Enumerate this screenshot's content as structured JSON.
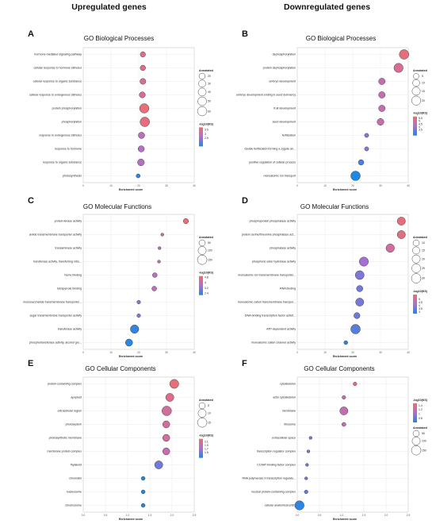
{
  "headers": {
    "left": "Upregulated genes",
    "right": "Downregulated genes"
  },
  "chart_data": [
    {
      "id": "A",
      "letter": "A",
      "type": "scatter",
      "title": "GO Biological Processes",
      "xlabel": "Enrichment score",
      "xlim": [
        0,
        40
      ],
      "xticks": [
        0,
        10,
        20,
        30,
        40
      ],
      "categories": [
        "hormone-mediated signaling pathway",
        "cellular response to hormone stimulus",
        "cellular response to organic substance",
        "cellular response to endogenous stimulus",
        "protein phosphorylation",
        "phosphorylation",
        "response to endogenous stimulus",
        "response to hormone",
        "response to organic substance",
        "photosynthesis"
      ],
      "x": [
        21.5,
        21.5,
        21.5,
        21.3,
        22.0,
        22.2,
        21.0,
        20.9,
        20.8,
        19.8
      ],
      "size": [
        12,
        13,
        17,
        18,
        60,
        62,
        21,
        20,
        26,
        5
      ],
      "color": [
        3.5,
        3.5,
        3.4,
        3.3,
        3.7,
        3.6,
        2.9,
        2.8,
        2.8,
        1.6
      ],
      "legend_size": {
        "title": "Annotated",
        "values": [
          20,
          30,
          40,
          50,
          60
        ]
      },
      "legend_color": {
        "title": "-log10(KS)",
        "ticks": [
          3.5,
          3.0,
          2.5
        ],
        "min": 1.5,
        "max": 3.8
      },
      "legend_order": "size-first"
    },
    {
      "id": "B",
      "letter": "B",
      "type": "scatter",
      "title": "GO Biological Processes",
      "xlabel": "Enrichment score",
      "xlim": [
        0,
        40
      ],
      "xticks": [
        0,
        10,
        20,
        30,
        40
      ],
      "categories": [
        "dephosphorylation",
        "protein dephosphorylation",
        "embryo development",
        "embryo development ending in seed dormancy",
        "fruit development",
        "seed development",
        "fertilization",
        "double fertilization forming a zygote an...",
        "positive regulation of cellular process",
        "monoatomic ion transport"
      ],
      "x": [
        38.5,
        36.5,
        30.5,
        30.5,
        30.5,
        30.0,
        25.0,
        25.0,
        23.0,
        21.0
      ],
      "size": [
        22,
        20,
        8,
        8,
        8,
        9,
        2,
        2,
        5,
        22
      ],
      "color": [
        5.6,
        5.2,
        4.7,
        4.7,
        4.7,
        4.7,
        3.8,
        3.8,
        3.0,
        2.5
      ],
      "legend_size": {
        "title": "Annotated",
        "values": [
          5,
          10,
          15,
          20
        ]
      },
      "legend_color": {
        "title": "-log10(KS)",
        "ticks": [
          5.5,
          5.0,
          4.5,
          4.0,
          3.5
        ],
        "min": 2.5,
        "max": 5.8
      },
      "legend_order": "size-first"
    },
    {
      "id": "C",
      "letter": "C",
      "type": "scatter",
      "title": "GO Molecular Functions",
      "xlabel": "Enrichment score",
      "xlim": [
        0,
        40
      ],
      "xticks": [
        0,
        10,
        20,
        30,
        40
      ],
      "categories": [
        "protein kinase activity",
        "amide transmembrane transporter activity",
        "transaminase activity",
        "transferase activity, transferring nitro...",
        "heme binding",
        "tetrapyrrole binding",
        "monosaccharide transmembrane transporter...",
        "sugar transmembrane transporter activity",
        "transferase activity",
        "phosphotransferase activity, alcohol gro..."
      ],
      "x": [
        37.0,
        28.5,
        27.5,
        27.3,
        25.8,
        25.6,
        20.0,
        20.0,
        18.5,
        16.5
      ],
      "size": [
        28,
        3,
        3,
        3,
        20,
        21,
        8,
        8,
        110,
        72
      ],
      "color": [
        4.9,
        4.2,
        4.0,
        4.0,
        3.9,
        3.9,
        3.2,
        3.2,
        2.3,
        2.2
      ],
      "legend_size": {
        "title": "Annotated",
        "values": [
          50,
          100,
          150
        ]
      },
      "legend_color": {
        "title": "-log10(KS)",
        "ticks": [
          4.8,
          4.0,
          3.2,
          2.4
        ],
        "min": 2.1,
        "max": 5.0
      },
      "legend_order": "size-first"
    },
    {
      "id": "D",
      "letter": "D",
      "type": "scatter",
      "title": "GO Molecular Functions",
      "xlabel": "Enrichment score",
      "xlim": [
        0,
        40
      ],
      "xticks": [
        0,
        10,
        20,
        30,
        40
      ],
      "categories": [
        "phosphoprotein phosphatase activity",
        "protein serine/threonine phosphatase act...",
        "phosphatase activity",
        "phosphoric ester hydrolase activity",
        "monoatomic ion transmembrane transporter...",
        "RNA binding",
        "monoatomic cation transmembrane transpor...",
        "DNA-binding transcription factor activit...",
        "ATP-dependent activity",
        "monoatomic cation channel activity"
      ],
      "x": [
        37.5,
        37.5,
        33.5,
        24.0,
        22.5,
        22.5,
        22.5,
        21.5,
        21.0,
        17.5
      ],
      "size": [
        20,
        20,
        22,
        27,
        25,
        10,
        20,
        9,
        30,
        2
      ],
      "color": [
        5.5,
        5.4,
        5.0,
        4.1,
        3.7,
        3.6,
        3.6,
        3.5,
        3.3,
        2.8
      ],
      "legend_size": {
        "title": "Annotated",
        "values": [
          10,
          15,
          20,
          25,
          30
        ]
      },
      "legend_color": {
        "title": "-log10(KS)",
        "ticks": [
          5.0,
          4.5,
          4.0,
          3.5,
          3.0
        ],
        "min": 2.7,
        "max": 5.7
      },
      "legend_order": "size-first"
    },
    {
      "id": "E",
      "letter": "E",
      "type": "scatter",
      "title": "GO Cellular Components",
      "xlabel": "Enrichment score",
      "xlim": [
        0.0,
        2.5
      ],
      "xticks": [
        0.0,
        0.5,
        1.0,
        1.5,
        2.0,
        2.5
      ],
      "categories": [
        "protein-containing complex",
        "apoplast",
        "extracellular region",
        "photosystem",
        "photosynthetic membrane",
        "membrane protein complex",
        "thylakoid",
        "chromatin",
        "nucleosome",
        "chromosome"
      ],
      "x": [
        2.05,
        1.95,
        1.88,
        1.87,
        1.87,
        1.87,
        1.7,
        1.35,
        1.35,
        1.35
      ],
      "size": [
        13,
        10,
        15,
        7,
        7,
        7,
        10,
        1,
        1,
        1
      ],
      "color": [
        2.2,
        2.1,
        2.0,
        2.0,
        2.0,
        1.9,
        1.5,
        1.2,
        1.2,
        1.2
      ],
      "legend_size": {
        "title": "Annotated",
        "values": [
          5,
          10,
          15
        ]
      },
      "legend_color": {
        "title": "-log10(KS)",
        "ticks": [
          2.1,
          1.9,
          1.7,
          1.5
        ],
        "min": 1.2,
        "max": 2.25
      },
      "legend_order": "size-first"
    },
    {
      "id": "F",
      "letter": "F",
      "type": "scatter",
      "title": "GO Cellular Components",
      "xlabel": "Enrichment score",
      "xlim": [
        0.0,
        2.5
      ],
      "xticks": [
        0.0,
        0.5,
        1.0,
        1.5,
        2.0,
        2.5
      ],
      "categories": [
        "cytoskeleton",
        "actin cytoskeleton",
        "membrane",
        "ribosome",
        "extracellular space",
        "transcription regulator complex",
        "CCAAT-binding factor complex",
        "RNA polymerase II transcription regulato...",
        "nuclear protein-containing complex",
        "cellular anatomical entity"
      ],
      "x": [
        1.3,
        1.05,
        1.05,
        1.05,
        0.3,
        0.25,
        0.22,
        0.2,
        0.2,
        0.05
      ],
      "size": [
        8,
        8,
        100,
        12,
        3,
        3,
        3,
        3,
        8,
        140
      ],
      "color": [
        1.45,
        1.2,
        1.2,
        1.2,
        0.9,
        0.85,
        0.85,
        0.85,
        0.8,
        0.65
      ],
      "legend_size": {
        "title": "Annotated",
        "values": [
          50,
          100,
          150
        ]
      },
      "legend_color": {
        "title": "-log10(KS)",
        "ticks": [
          1.4,
          1.2,
          1.0,
          0.8
        ],
        "min": 0.6,
        "max": 1.5
      },
      "legend_order": "color-first"
    }
  ]
}
